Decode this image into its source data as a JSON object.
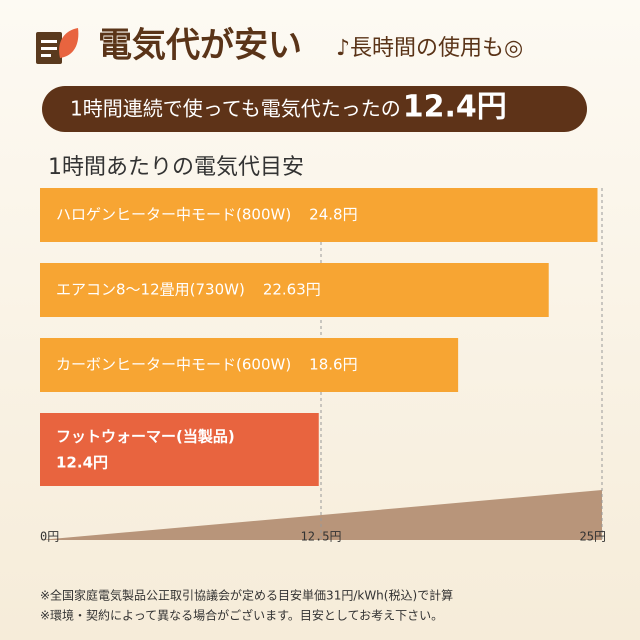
{
  "header": {
    "title": "電気代が安い",
    "subtitle": "♪長時間の使用も◎"
  },
  "banner": {
    "text": "1時間連続で使っても電気代たったの",
    "highlight": "12.4円"
  },
  "chart_data": {
    "type": "bar",
    "orientation": "horizontal",
    "title": "1時間あたりの電気代目安",
    "categories": [
      "ハロゲンヒーター中モード(800W)",
      "エアコン8～12畳用(730W)",
      "カーボンヒーター中モード(600W)",
      "フットウォーマー(当製品)"
    ],
    "values": [
      24.8,
      22.63,
      18.6,
      12.4
    ],
    "value_labels": [
      "24.8円",
      "22.63円",
      "18.6円",
      "12.4円"
    ],
    "colors": [
      "#f7a533",
      "#f7a533",
      "#f7a533",
      "#e8643f"
    ],
    "xlim": [
      0,
      25
    ],
    "xticks": [
      {
        "value": 0,
        "label": "0円"
      },
      {
        "value": 12.5,
        "label": "12.5円"
      },
      {
        "value": 25,
        "label": "25円"
      }
    ],
    "grid": true
  },
  "notes": [
    "※全国家庭電気製品公正取引協議会が定める目安単価31円/kWh(税込)で計算",
    "※環境・契約によって異なる場合がございます。目安としてお考え下さい。"
  ]
}
